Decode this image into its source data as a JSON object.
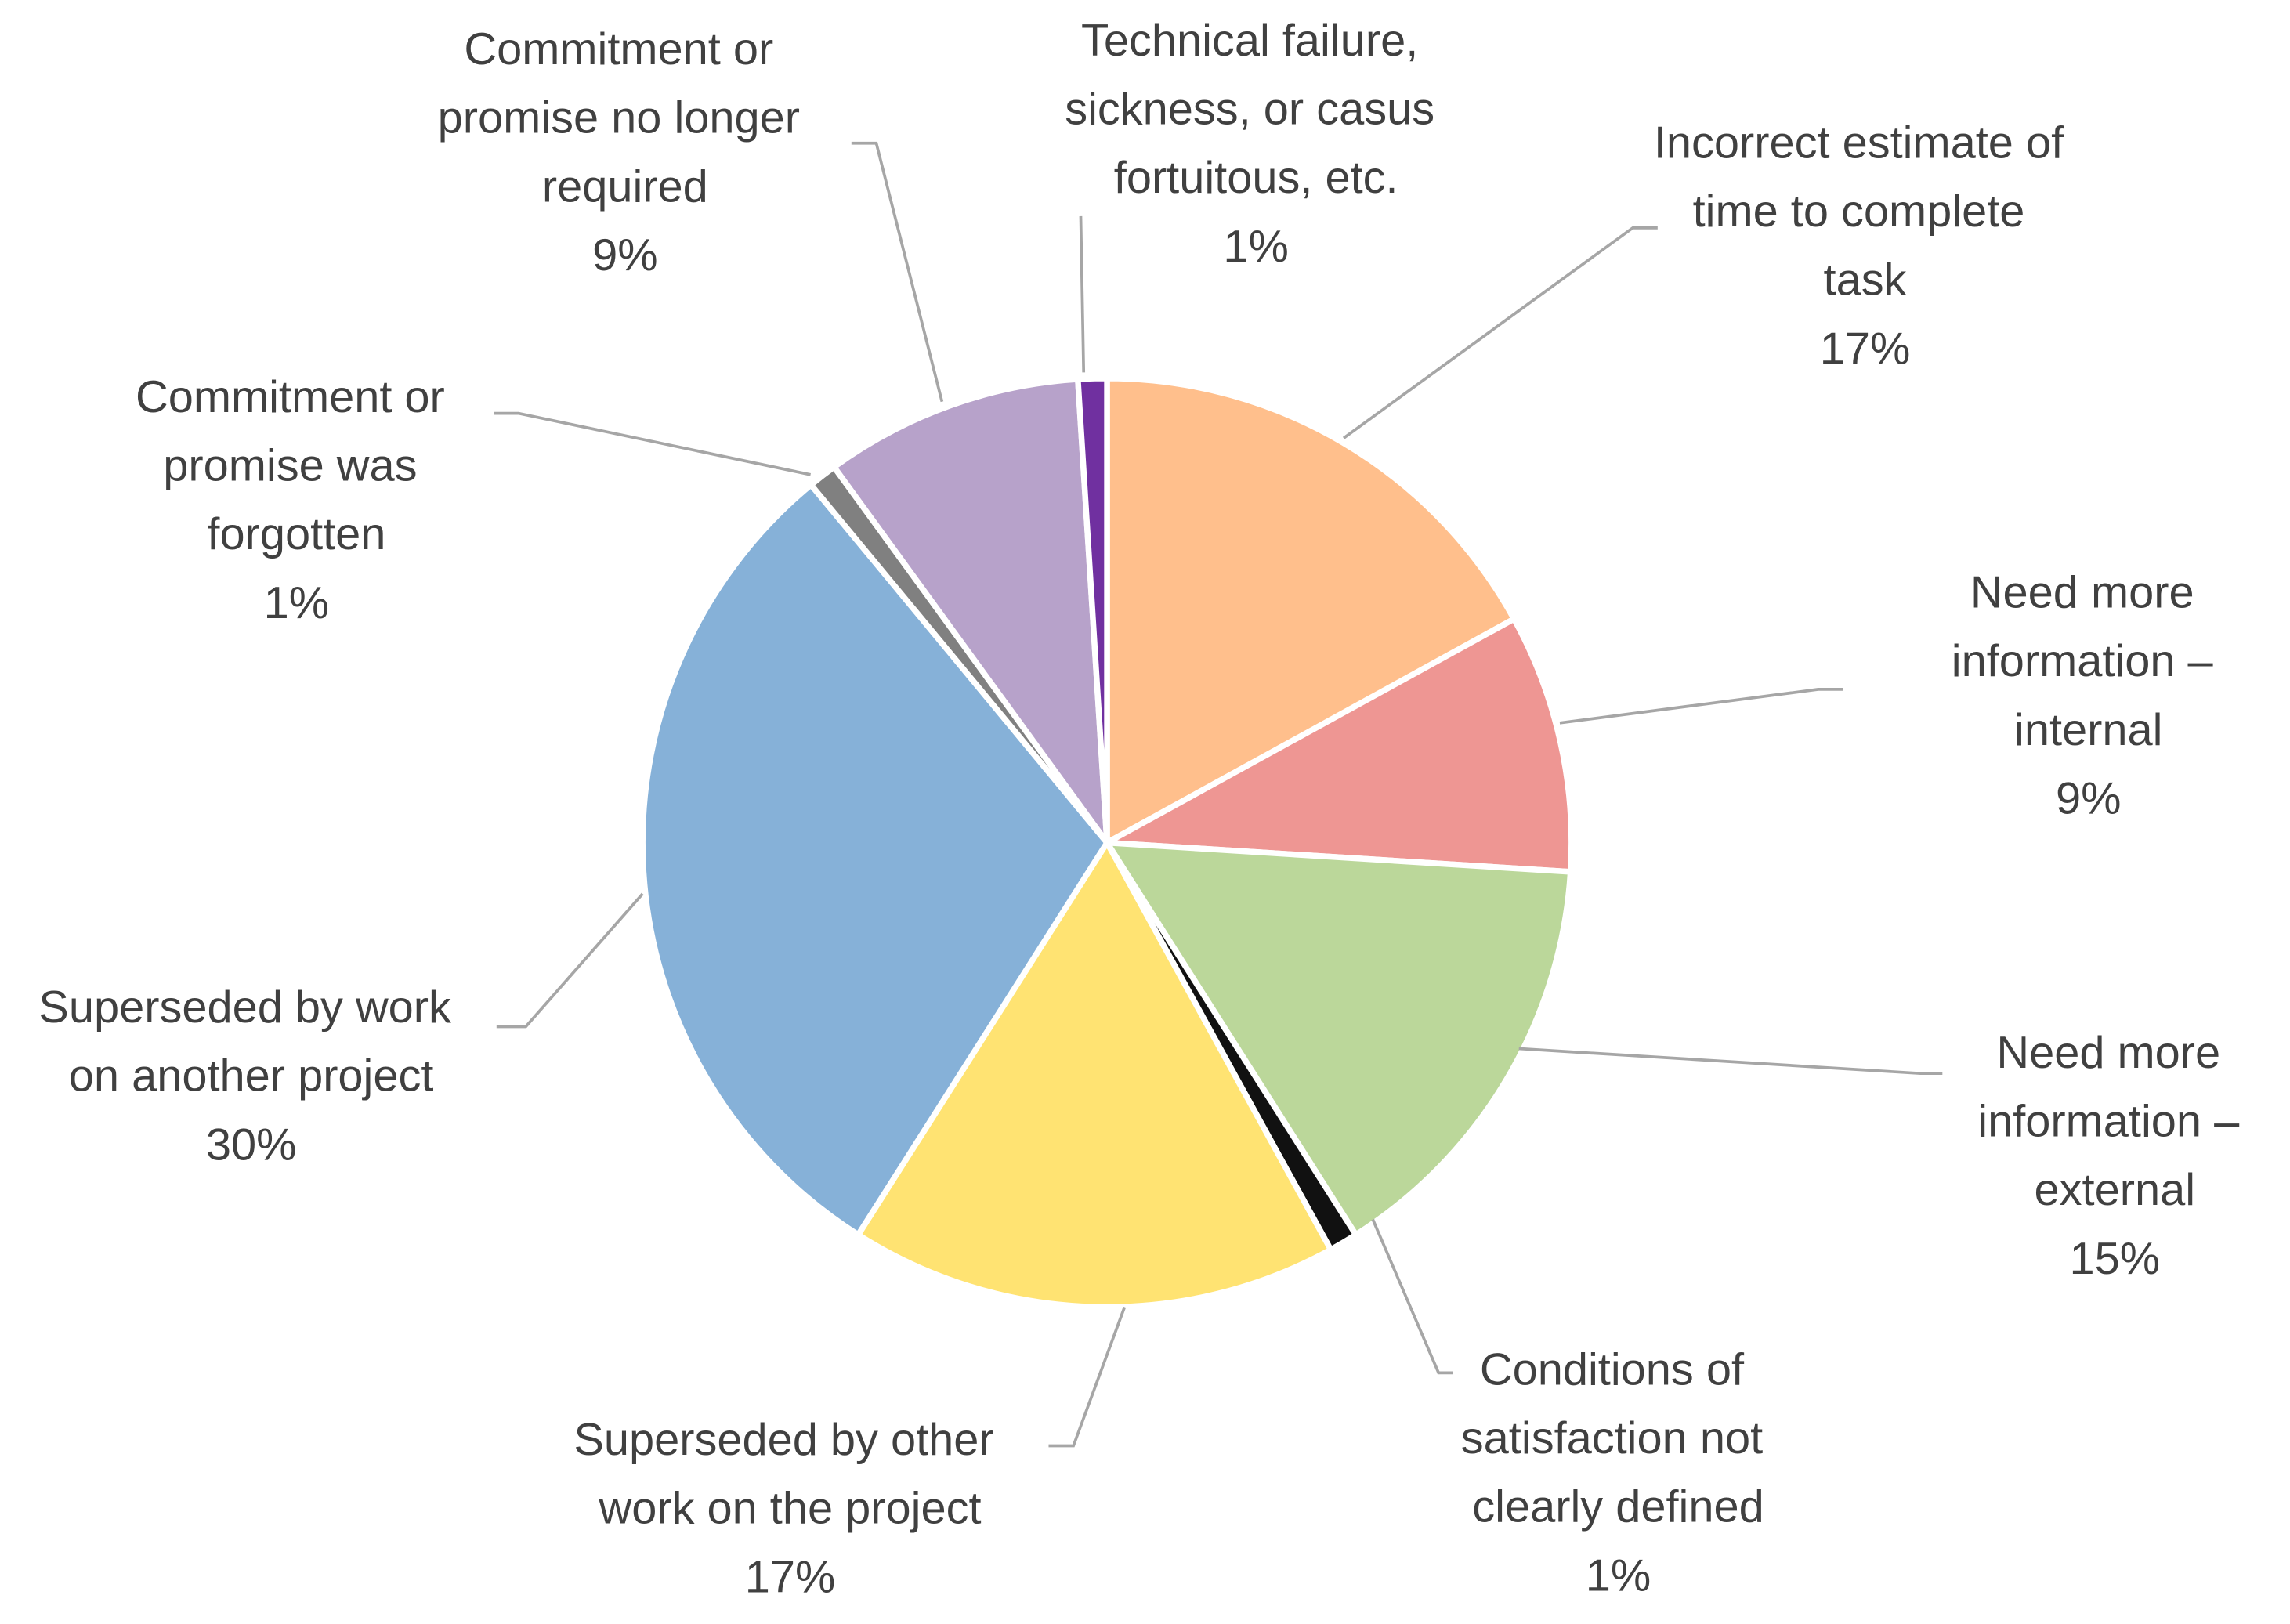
{
  "chart_data": {
    "type": "pie",
    "categories": [
      "Incorrect estimate of time to complete task",
      "Need more information – internal",
      "Need more information – external",
      "Conditions of satisfaction not clearly defined",
      "Superseded by other work on the project",
      "Superseded by work on another project",
      "Commitment or promise was forgotten",
      "Commitment or promise no longer required",
      "Technical failure, sickness, or casus fortuitous, etc."
    ],
    "values": [
      17,
      9,
      15,
      1,
      17,
      30,
      1,
      9,
      1
    ],
    "value_labels": [
      "17%",
      "9%",
      "15%",
      "1%",
      "17%",
      "30%",
      "1%",
      "9%",
      "1%"
    ],
    "colors": [
      "#ffbf8c",
      "#ee9693",
      "#bbd79a",
      "#111111",
      "#ffe372",
      "#86b1d8",
      "#808080",
      "#b7a2ca",
      "#7030a0"
    ]
  }
}
